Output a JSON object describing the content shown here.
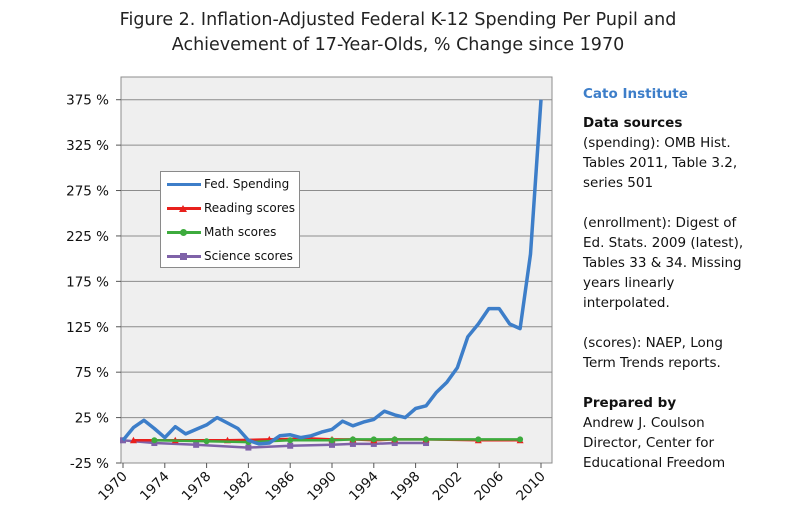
{
  "title_line1": "Figure 2.  Inflation-Adjusted Federal K-12 Spending Per Pupil and",
  "title_line2": "Achievement of 17-Year-Olds, % Change since 1970",
  "sidebar": {
    "org": "Cato Institute",
    "data_sources_heading": "Data sources",
    "spending_lines": [
      "(spending): OMB Hist.",
      "Tables 2011, Table 3.2,",
      "series 501"
    ],
    "enrollment_lines": [
      "(enrollment): Digest of",
      "Ed. Stats. 2009 (latest),",
      "Tables 33 & 34. Missing",
      "years linearly",
      "interpolated."
    ],
    "scores_lines": [
      "(scores): NAEP, Long",
      "Term Trends reports."
    ],
    "prepared_heading": "Prepared by",
    "prepared_lines": [
      "Andrew J. Coulson",
      "Director, Center for",
      "Educational Freedom"
    ]
  },
  "chart_data": {
    "type": "line",
    "title": "Figure 2.  Inflation-Adjusted Federal K-12 Spending Per Pupil and Achievement of 17-Year-Olds, % Change since 1970",
    "xlabel": "",
    "ylabel": "",
    "xlim": [
      1970,
      2010
    ],
    "ylim": [
      -25,
      400
    ],
    "yticks": [
      -25,
      25,
      75,
      125,
      175,
      225,
      275,
      325,
      375
    ],
    "ytick_labels": [
      "-25 %",
      "25 %",
      "75 %",
      "125 %",
      "175 %",
      "225 %",
      "275 %",
      "325 %",
      "375 %"
    ],
    "xticks": [
      1970,
      1974,
      1978,
      1982,
      1986,
      1990,
      1994,
      1998,
      2002,
      2006,
      2010
    ],
    "xtick_labels": [
      "1970",
      "1974",
      "1978",
      "1982",
      "1986",
      "1990",
      "1994",
      "1998",
      "2002",
      "2006",
      "2010"
    ],
    "grid": "horizontal",
    "legend_position": "upper-left",
    "series": [
      {
        "name": "Fed. Spending",
        "color": "#3d7ec9",
        "marker": "none",
        "x": [
          1970,
          1971,
          1972,
          1973,
          1974,
          1975,
          1976,
          1977,
          1978,
          1979,
          1980,
          1981,
          1982,
          1983,
          1984,
          1985,
          1986,
          1987,
          1988,
          1989,
          1990,
          1991,
          1992,
          1993,
          1994,
          1995,
          1996,
          1997,
          1998,
          1999,
          2000,
          2001,
          2002,
          2003,
          2004,
          2005,
          2006,
          2007,
          2008,
          2009,
          2010
        ],
        "y": [
          0,
          14,
          22,
          13,
          3,
          15,
          7,
          12,
          17,
          25,
          19,
          13,
          0,
          -4,
          -3,
          5,
          6,
          3,
          5,
          9,
          12,
          21,
          16,
          20,
          23,
          32,
          28,
          25,
          35,
          38,
          53,
          64,
          80,
          114,
          128,
          145,
          145,
          128,
          123,
          205,
          375
        ]
      },
      {
        "name": "Reading scores",
        "color": "#e8201c",
        "marker": "triangle",
        "x": [
          1971,
          1975,
          1980,
          1984,
          1988,
          1990,
          1992,
          1994,
          1996,
          1999,
          2004,
          2008
        ],
        "y": [
          0,
          0,
          0,
          1,
          2,
          1,
          1,
          0,
          1,
          1,
          0,
          0
        ]
      },
      {
        "name": "Math scores",
        "color": "#3dab3d",
        "marker": "circle",
        "x": [
          1973,
          1978,
          1982,
          1986,
          1990,
          1992,
          1994,
          1996,
          1999,
          2004,
          2008
        ],
        "y": [
          0,
          -1,
          -2,
          0,
          0,
          1,
          1,
          1,
          1,
          1,
          1
        ]
      },
      {
        "name": "Science scores",
        "color": "#7f62a8",
        "marker": "square",
        "x": [
          1970,
          1973,
          1977,
          1982,
          1986,
          1990,
          1992,
          1994,
          1996,
          1999
        ],
        "y": [
          0,
          -3,
          -5,
          -8,
          -6,
          -5,
          -4,
          -4,
          -3,
          -3
        ]
      }
    ]
  }
}
